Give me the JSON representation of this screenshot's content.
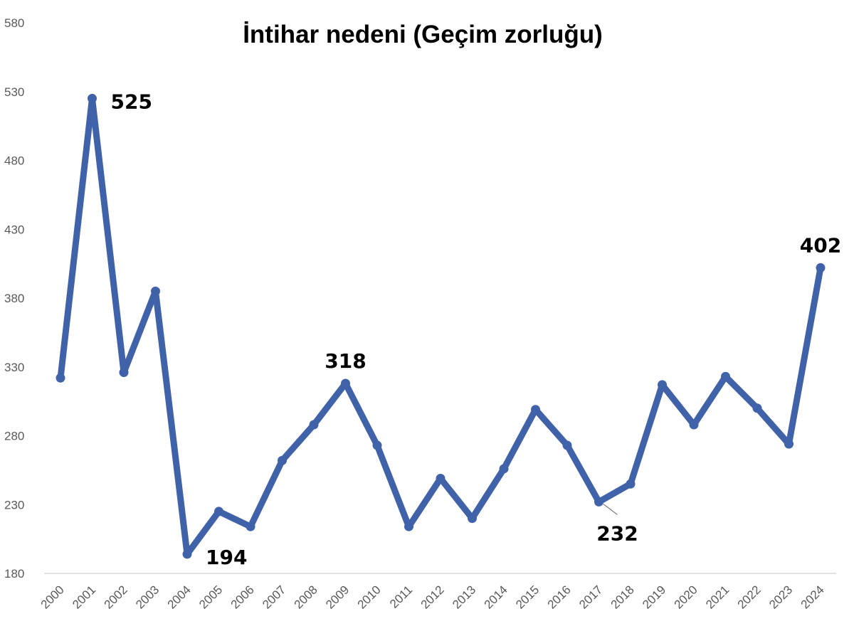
{
  "chart_data": {
    "type": "line",
    "title": "İntihar nedeni (Geçim zorluğu)",
    "xlabel": "",
    "ylabel": "",
    "ylim": [
      180,
      580
    ],
    "yticks": [
      180,
      230,
      280,
      330,
      380,
      430,
      480,
      530,
      580
    ],
    "grid": false,
    "legend": "none",
    "categories": [
      "2000",
      "2001",
      "2002",
      "2003",
      "2004",
      "2005",
      "2006",
      "2007",
      "2008",
      "2009",
      "2010",
      "2011",
      "2012",
      "2013",
      "2014",
      "2015",
      "2016",
      "2017",
      "2018",
      "2019",
      "2020",
      "2021",
      "2022",
      "2023",
      "2024"
    ],
    "series": [
      {
        "color": "#4062A8",
        "values": [
          322,
          525,
          326,
          385,
          194,
          225,
          214,
          262,
          288,
          318,
          273,
          214,
          249,
          220,
          256,
          299,
          273,
          232,
          245,
          317,
          288,
          323,
          300,
          274,
          402
        ]
      }
    ],
    "data_labels": [
      {
        "category": "2001",
        "text": "525",
        "placement": "right"
      },
      {
        "category": "2004",
        "text": "194",
        "placement": "below-right"
      },
      {
        "category": "2009",
        "text": "318",
        "placement": "above"
      },
      {
        "category": "2017",
        "text": "232",
        "placement": "below-right-leader"
      },
      {
        "category": "2024",
        "text": "402",
        "placement": "above"
      }
    ]
  }
}
